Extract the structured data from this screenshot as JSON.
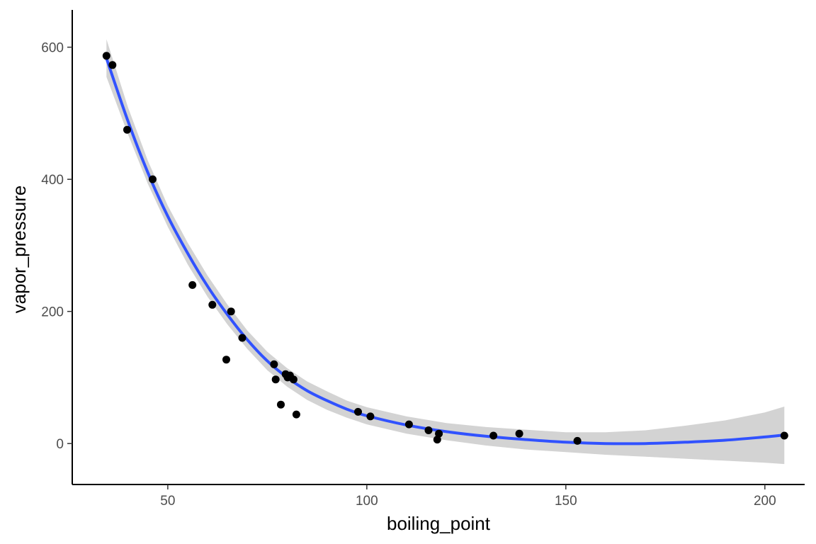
{
  "chart_data": {
    "type": "scatter",
    "title": "",
    "xlabel": "boiling_point",
    "ylabel": "vapor_pressure",
    "xlim": [
      26,
      210
    ],
    "ylim": [
      -62,
      650
    ],
    "x_ticks": [
      50,
      100,
      150,
      200
    ],
    "y_ticks": [
      0,
      200,
      400,
      600
    ],
    "grid": false,
    "legend": "none",
    "points": [
      {
        "x": 34.6,
        "y": 587
      },
      {
        "x": 36.1,
        "y": 573
      },
      {
        "x": 39.8,
        "y": 475
      },
      {
        "x": 46.2,
        "y": 400
      },
      {
        "x": 56.2,
        "y": 240
      },
      {
        "x": 61.2,
        "y": 210
      },
      {
        "x": 64.7,
        "y": 127
      },
      {
        "x": 65.9,
        "y": 200
      },
      {
        "x": 68.7,
        "y": 160
      },
      {
        "x": 76.7,
        "y": 120
      },
      {
        "x": 77.1,
        "y": 97
      },
      {
        "x": 78.4,
        "y": 59
      },
      {
        "x": 79.6,
        "y": 105
      },
      {
        "x": 80.1,
        "y": 100
      },
      {
        "x": 80.7,
        "y": 103
      },
      {
        "x": 81.6,
        "y": 97
      },
      {
        "x": 82.3,
        "y": 44
      },
      {
        "x": 97.8,
        "y": 48
      },
      {
        "x": 100.9,
        "y": 41
      },
      {
        "x": 110.6,
        "y": 29
      },
      {
        "x": 115.5,
        "y": 20
      },
      {
        "x": 117.7,
        "y": 6
      },
      {
        "x": 118.1,
        "y": 15
      },
      {
        "x": 131.8,
        "y": 12
      },
      {
        "x": 138.3,
        "y": 15
      },
      {
        "x": 152.9,
        "y": 4
      },
      {
        "x": 204.9,
        "y": 12
      }
    ],
    "smooth": {
      "method": "loess",
      "x": [
        34.6,
        40,
        45,
        50,
        55,
        60,
        65,
        70,
        75,
        80,
        85,
        90,
        95,
        100,
        110,
        120,
        130,
        140,
        150,
        160,
        170,
        180,
        190,
        200,
        204.9
      ],
      "y": [
        583,
        488,
        410,
        344,
        288,
        238,
        195,
        157,
        125,
        100,
        80,
        65,
        52,
        42,
        28,
        18,
        11,
        6,
        2,
        0,
        0,
        2,
        5,
        10,
        13
      ],
      "lower": [
        555,
        468,
        393,
        328,
        271,
        222,
        180,
        143,
        111,
        86,
        66,
        51,
        39,
        29,
        15,
        5,
        -3,
        -9,
        -13,
        -17,
        -20,
        -23,
        -26,
        -29,
        -31
      ],
      "upper": [
        612,
        509,
        428,
        360,
        304,
        254,
        210,
        171,
        139,
        114,
        94,
        79,
        65,
        55,
        41,
        31,
        25,
        21,
        17,
        17,
        20,
        27,
        35,
        47,
        56
      ]
    },
    "colors": {
      "points": "#000000",
      "trend": "#3152ff",
      "band": "#d3d3d3",
      "axes": "#000000",
      "tick_labels": "#4d4d4d"
    }
  }
}
